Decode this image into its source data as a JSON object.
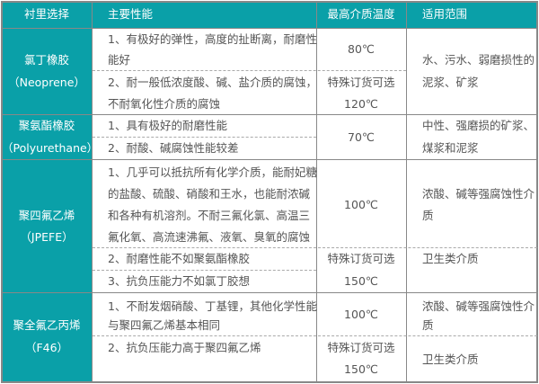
{
  "colors": {
    "header": "#0aa0a8",
    "text": "#555555"
  },
  "headers": [
    "衬里选择",
    "主要性能",
    "最高介质温度",
    "适用范围"
  ],
  "rows": [
    {
      "name": [
        "氯丁橡胶",
        "（Neoprene）"
      ],
      "props": [
        "1、有极好的弹性，高度的扯断离，耐磨性",
        "能好",
        "2、耐一般低浓度酸、碱、盐介质的腐蚀，",
        "不耐氧化性介质的腐蚀"
      ],
      "temp": [
        "80℃",
        "特殊订货可选",
        "120℃"
      ],
      "use": [
        "水、污水、弱磨损性的",
        "泥浆、矿浆"
      ]
    },
    {
      "name": [
        "聚氨酯橡胶",
        "（Polyurethane）"
      ],
      "props": [
        "1、具有极好的耐磨性能",
        "2、耐酸、碱腐蚀性能较差"
      ],
      "temp": [
        "70℃"
      ],
      "use": [
        "中性、强磨损的矿浆、",
        "煤浆和泥浆"
      ]
    },
    {
      "name": [
        "聚四氟乙烯",
        "（JPEFE）"
      ],
      "props": [
        "1、几乎可以抵抗所有化学介质，能耐妃糖",
        "的盐酸、硫酸、硝酸和王水，也能耐浓碱",
        "和各种有机溶剂。不耐三氟化氯、高温三",
        "氟化氧、高流速沸氟、液氧、臭氧的腐蚀",
        "2、耐磨性能不如聚氨酯橡胶",
        "3、抗负压能力不如氯丁胶想"
      ],
      "temp": [
        "100℃",
        "特殊订货可选",
        "150℃"
      ],
      "use": [
        "浓酸、碱等强腐蚀性介",
        "质",
        "卫生类介质"
      ]
    },
    {
      "name": [
        "聚全氟乙丙烯",
        "（F46）"
      ],
      "props": [
        "1、不耐发烟硝酸、丁基锂，其他化学性能",
        "与聚四氟乙烯基本相同",
        "2、抗负压能力高于聚四氟乙烯"
      ],
      "temp": [
        "100℃",
        "特殊订货可选",
        "150℃"
      ],
      "use": [
        "浓酸、碱等强腐蚀性介",
        "质",
        "卫生类介质"
      ]
    }
  ]
}
